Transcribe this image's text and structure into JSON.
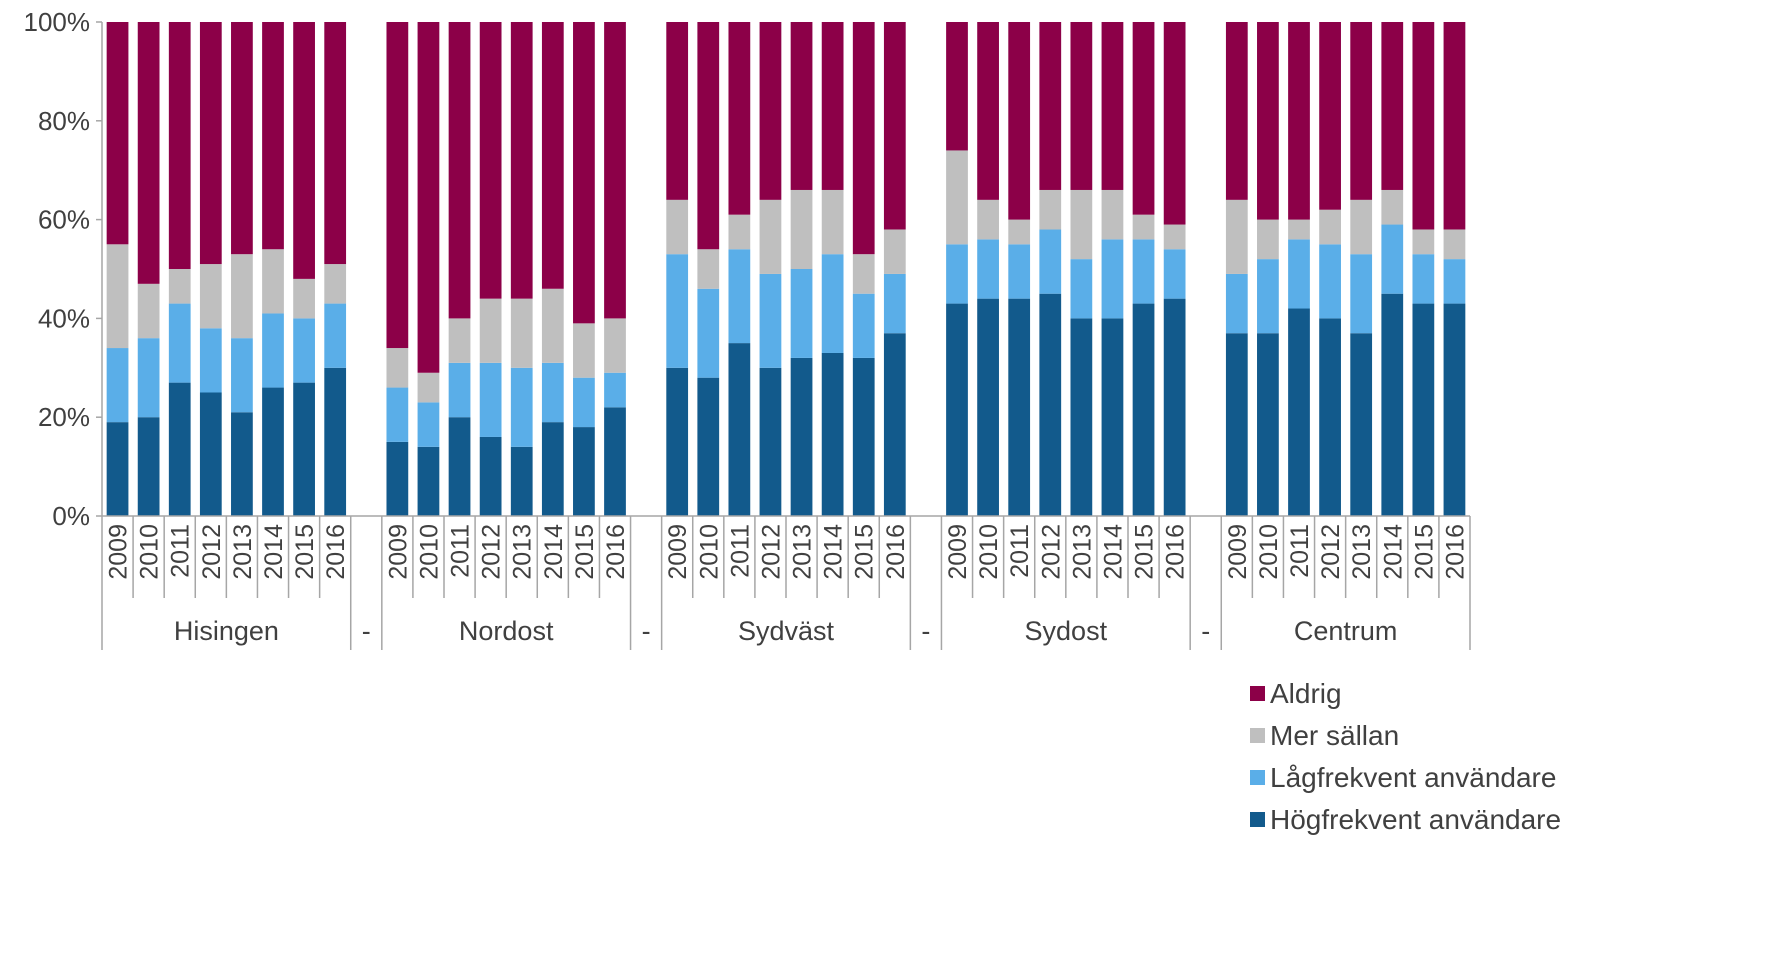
{
  "chart_data": {
    "type": "bar",
    "stacked": true,
    "percent_stacked": true,
    "y_tick_labels": [
      "0%",
      "20%",
      "40%",
      "60%",
      "80%",
      "100%"
    ],
    "ylim": [
      0,
      100
    ],
    "grid": false,
    "legend_position": "bottom-right",
    "groups": [
      {
        "label": "Hisingen",
        "years": [
          "2009",
          "2010",
          "2011",
          "2012",
          "2013",
          "2014",
          "2015",
          "2016"
        ]
      },
      {
        "label": "-",
        "years": []
      },
      {
        "label": "Nordost",
        "years": [
          "2009",
          "2010",
          "2011",
          "2012",
          "2013",
          "2014",
          "2015",
          "2016"
        ]
      },
      {
        "label": "-",
        "years": []
      },
      {
        "label": "Sydväst",
        "years": [
          "2009",
          "2010",
          "2011",
          "2012",
          "2013",
          "2014",
          "2015",
          "2016"
        ]
      },
      {
        "label": "-",
        "years": []
      },
      {
        "label": "Sydost",
        "years": [
          "2009",
          "2010",
          "2011",
          "2012",
          "2013",
          "2014",
          "2015",
          "2016"
        ]
      },
      {
        "label": "-",
        "years": []
      },
      {
        "label": "Centrum",
        "years": [
          "2009",
          "2010",
          "2011",
          "2012",
          "2013",
          "2014",
          "2015",
          "2016"
        ]
      }
    ],
    "series": [
      {
        "name": "Högfrekvent användare",
        "color": "#125a8c",
        "values": [
          19,
          20,
          27,
          25,
          21,
          26,
          27,
          30,
          15,
          14,
          20,
          16,
          14,
          19,
          18,
          22,
          30,
          28,
          35,
          30,
          32,
          33,
          32,
          37,
          43,
          44,
          44,
          45,
          40,
          40,
          43,
          44,
          37,
          37,
          42,
          40,
          37,
          45,
          43,
          43
        ]
      },
      {
        "name": "Lågfrekvent användare",
        "color": "#5aaee8",
        "values": [
          15,
          16,
          16,
          13,
          15,
          15,
          13,
          13,
          11,
          9,
          11,
          15,
          16,
          12,
          10,
          7,
          23,
          18,
          19,
          19,
          18,
          20,
          13,
          12,
          12,
          12,
          11,
          13,
          12,
          16,
          13,
          10,
          12,
          15,
          14,
          15,
          16,
          14,
          10,
          9
        ]
      },
      {
        "name": "Mer sällan",
        "color": "#bfbfbf",
        "values": [
          21,
          11,
          7,
          13,
          17,
          13,
          8,
          8,
          8,
          6,
          9,
          13,
          14,
          15,
          11,
          11,
          11,
          8,
          7,
          15,
          16,
          13,
          8,
          9,
          19,
          8,
          5,
          8,
          14,
          10,
          5,
          5,
          15,
          8,
          4,
          7,
          11,
          7,
          5,
          6
        ]
      },
      {
        "name": "Aldrig",
        "color": "#8c0048",
        "values": [
          45,
          53,
          50,
          49,
          47,
          46,
          52,
          49,
          66,
          71,
          60,
          56,
          56,
          54,
          61,
          60,
          36,
          46,
          39,
          36,
          34,
          34,
          47,
          42,
          26,
          36,
          40,
          34,
          34,
          34,
          39,
          41,
          36,
          40,
          40,
          38,
          36,
          34,
          42,
          42
        ]
      }
    ],
    "legend_order": [
      "Aldrig",
      "Mer sällan",
      "Lågfrekvent användare",
      "Högfrekvent användare"
    ]
  }
}
